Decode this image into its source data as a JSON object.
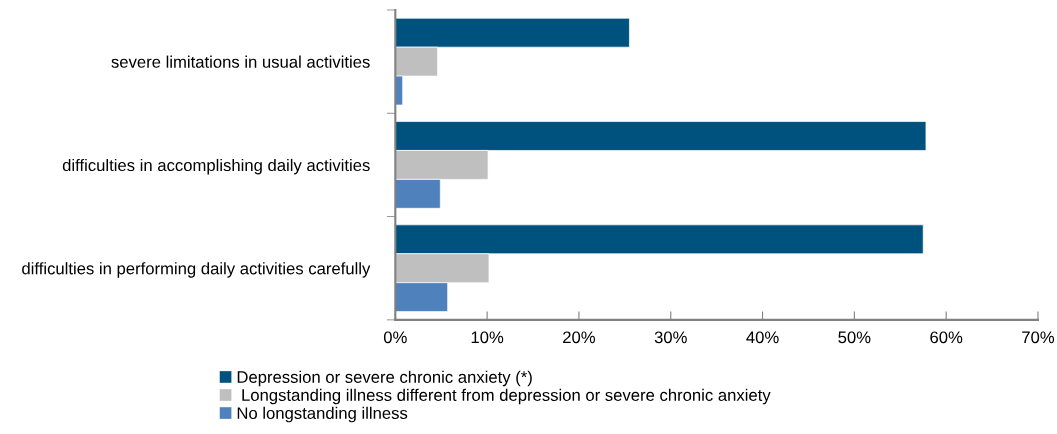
{
  "chart_data": {
    "type": "bar",
    "orientation": "horizontal",
    "categories": [
      "severe limitations in usual activities",
      "difficulties in accomplishing daily activities",
      "difficulties in performing daily activities carefully"
    ],
    "series": [
      {
        "name": "Depression or severe chronic anxiety (*)",
        "color": "#00527e",
        "values": [
          25.5,
          57.8,
          57.5
        ]
      },
      {
        "name": " Longstanding illness different from depression or severe chronic anxiety",
        "color": "#bfbfbf",
        "values": [
          4.6,
          10.1,
          10.2
        ]
      },
      {
        "name": "No longstanding illness",
        "color": "#4f81bd",
        "values": [
          0.8,
          4.9,
          5.7
        ]
      }
    ],
    "xlim": [
      0,
      70
    ],
    "xticks": [
      {
        "value": 0,
        "label": "0%"
      },
      {
        "value": 10,
        "label": "10%"
      },
      {
        "value": 20,
        "label": "20%"
      },
      {
        "value": 30,
        "label": "30%"
      },
      {
        "value": 40,
        "label": "40%"
      },
      {
        "value": 50,
        "label": "50%"
      },
      {
        "value": 60,
        "label": "60%"
      },
      {
        "value": 70,
        "label": "70%"
      }
    ],
    "grid": false,
    "legend": "bottom"
  }
}
